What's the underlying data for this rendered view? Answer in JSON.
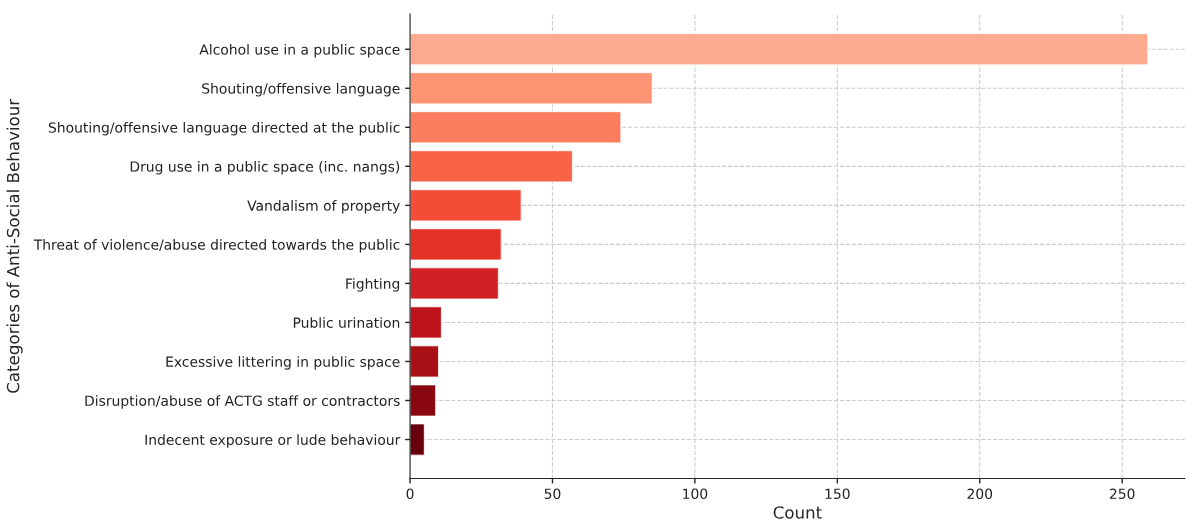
{
  "chart_data": {
    "type": "bar",
    "orientation": "horizontal",
    "xlabel": "Count",
    "ylabel": "Categories of Anti-Social Behaviour",
    "categories": [
      "Alcohol use in a public space",
      "Shouting/offensive language",
      "Shouting/offensive language directed at the public",
      "Drug use in a public space (inc. nangs)",
      "Vandalism of property",
      "Threat of violence/abuse directed towards the public",
      "Fighting",
      "Public urination",
      "Excessive littering in public space",
      "Disruption/abuse of ACTG staff or contractors",
      "Indecent exposure or lude behaviour"
    ],
    "values": [
      259,
      85,
      74,
      57,
      39,
      32,
      31,
      11,
      10,
      9,
      5
    ],
    "colors": [
      "#fcab8f",
      "#fc9474",
      "#fb7d5d",
      "#f96346",
      "#f34c37",
      "#e53228",
      "#d22027",
      "#bc141a",
      "#a91016",
      "#8a0812",
      "#67000d"
    ],
    "xlim": [
      0,
      272
    ],
    "xticks": [
      0,
      50,
      100,
      150,
      200,
      250
    ],
    "grid": true
  }
}
